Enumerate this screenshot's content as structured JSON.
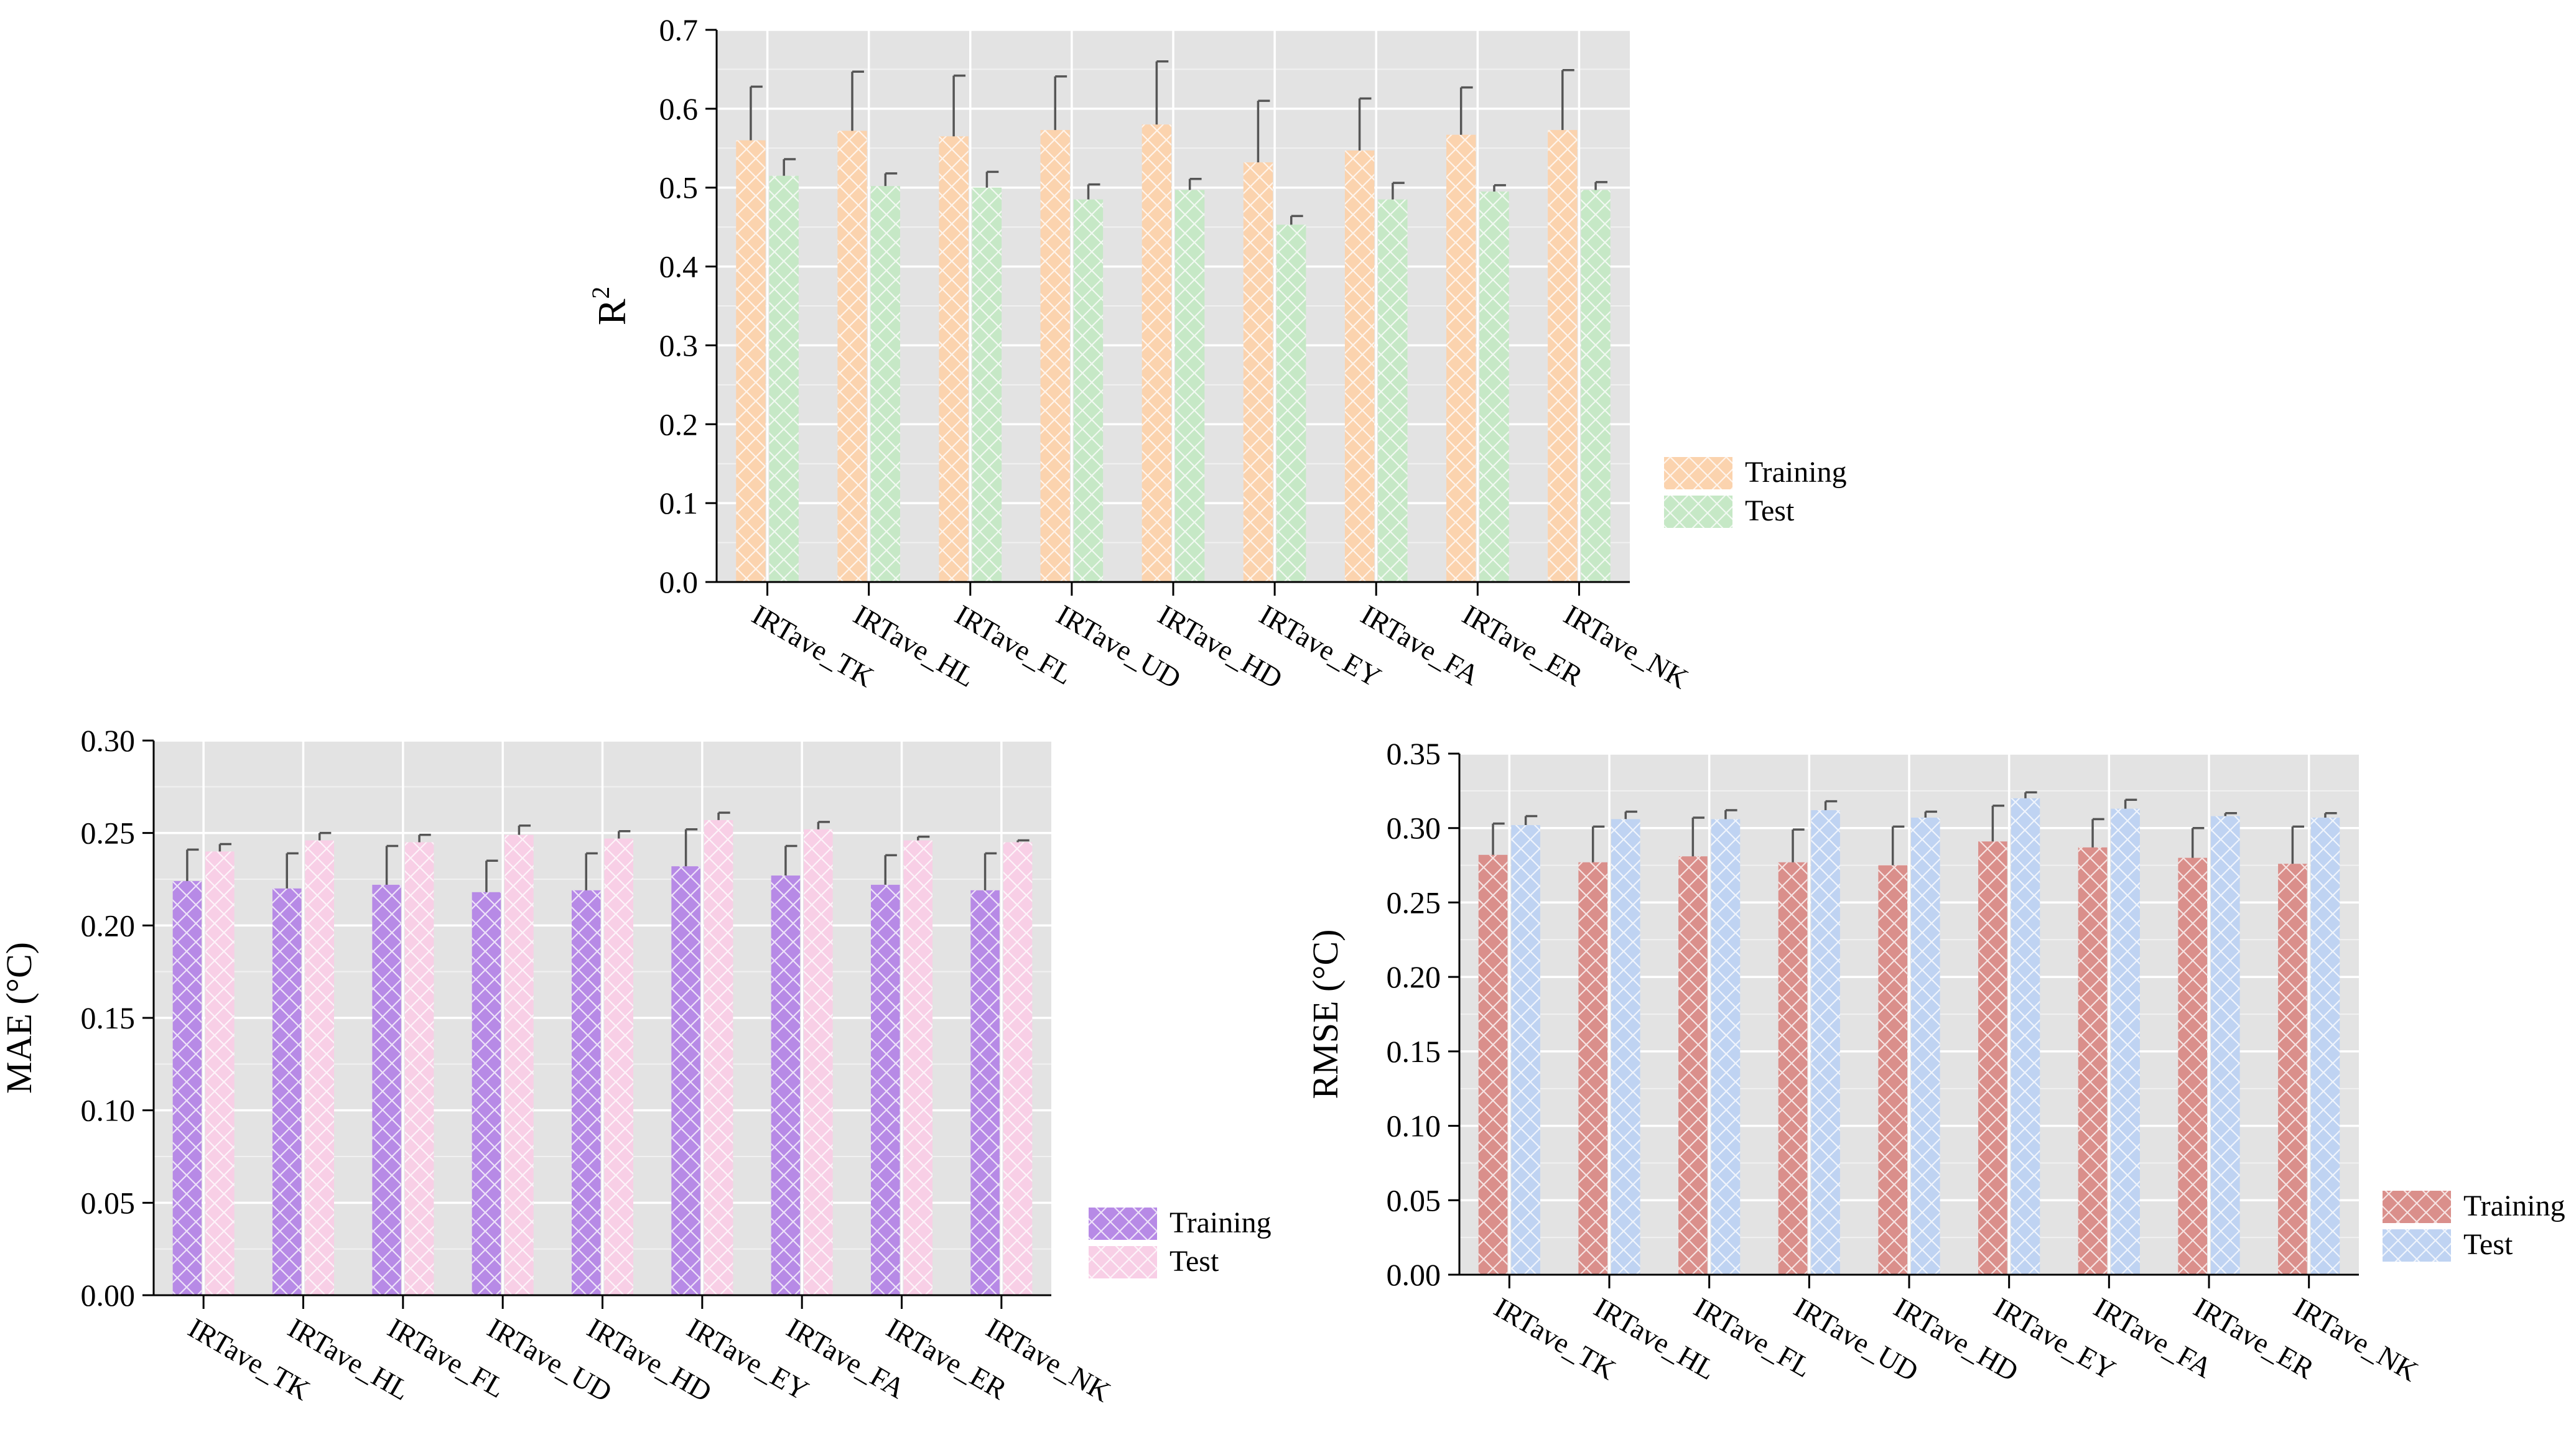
{
  "categories": [
    "IRTave_TK",
    "IRTave_HL",
    "IRTave_FL",
    "IRTave_UD",
    "IRTave_HD",
    "IRTave_EY",
    "IRTave_FA",
    "IRTave_ER",
    "IRTave_NK"
  ],
  "chart_data": [
    {
      "id": "r2",
      "type": "bar",
      "title": "",
      "xlabel": "",
      "ylabel": "R",
      "ylabel_superscript": "2",
      "ylim": [
        0,
        0.7
      ],
      "yticks": [
        "0.0",
        "0.1",
        "0.2",
        "0.3",
        "0.4",
        "0.5",
        "0.6",
        "0.7"
      ],
      "grid": true,
      "legend_position": "right",
      "categories": [
        "IRTave_TK",
        "IRTave_HL",
        "IRTave_FL",
        "IRTave_UD",
        "IRTave_HD",
        "IRTave_EY",
        "IRTave_FA",
        "IRTave_ER",
        "IRTave_NK"
      ],
      "series": [
        {
          "name": "Training",
          "color": "#fbd3ae",
          "values": [
            0.56,
            0.572,
            0.565,
            0.573,
            0.58,
            0.532,
            0.547,
            0.567,
            0.573
          ],
          "errors": [
            0.068,
            0.075,
            0.077,
            0.068,
            0.08,
            0.078,
            0.066,
            0.06,
            0.076
          ]
        },
        {
          "name": "Test",
          "color": "#c6e8c6",
          "values": [
            0.515,
            0.502,
            0.5,
            0.485,
            0.497,
            0.453,
            0.485,
            0.495,
            0.497
          ],
          "errors": [
            0.021,
            0.016,
            0.02,
            0.019,
            0.014,
            0.011,
            0.021,
            0.008,
            0.01
          ]
        }
      ]
    },
    {
      "id": "mae",
      "type": "bar",
      "title": "",
      "xlabel": "",
      "ylabel": "MAE (°C)",
      "ylim": [
        0,
        0.3
      ],
      "yticks": [
        "0.00",
        "0.05",
        "0.10",
        "0.15",
        "0.20",
        "0.25",
        "0.30"
      ],
      "grid": true,
      "legend_position": "right",
      "categories": [
        "IRTave_TK",
        "IRTave_HL",
        "IRTave_FL",
        "IRTave_UD",
        "IRTave_HD",
        "IRTave_EY",
        "IRTave_FA",
        "IRTave_ER",
        "IRTave_NK"
      ],
      "series": [
        {
          "name": "Training",
          "color": "#b78ae6",
          "values": [
            0.224,
            0.22,
            0.222,
            0.218,
            0.219,
            0.232,
            0.227,
            0.222,
            0.219
          ],
          "errors": [
            0.017,
            0.019,
            0.021,
            0.017,
            0.02,
            0.02,
            0.016,
            0.016,
            0.02
          ]
        },
        {
          "name": "Test",
          "color": "#f8cfe6",
          "values": [
            0.24,
            0.246,
            0.245,
            0.249,
            0.247,
            0.257,
            0.252,
            0.246,
            0.245
          ],
          "errors": [
            0.004,
            0.004,
            0.004,
            0.005,
            0.004,
            0.004,
            0.004,
            0.002,
            0.001
          ]
        }
      ]
    },
    {
      "id": "rmse",
      "type": "bar",
      "title": "",
      "xlabel": "",
      "ylabel": "RMSE (°C)",
      "ylim": [
        0,
        0.35
      ],
      "yticks": [
        "0.00",
        "0.05",
        "0.10",
        "0.15",
        "0.20",
        "0.25",
        "0.30",
        "0.35"
      ],
      "grid": true,
      "legend_position": "right",
      "categories": [
        "IRTave_TK",
        "IRTave_HL",
        "IRTave_FL",
        "IRTave_UD",
        "IRTave_HD",
        "IRTave_EY",
        "IRTave_FA",
        "IRTave_ER",
        "IRTave_NK"
      ],
      "series": [
        {
          "name": "Training",
          "color": "#da8f8b",
          "values": [
            0.282,
            0.277,
            0.281,
            0.277,
            0.275,
            0.291,
            0.287,
            0.28,
            0.276
          ],
          "errors": [
            0.021,
            0.024,
            0.026,
            0.022,
            0.026,
            0.024,
            0.019,
            0.02,
            0.025
          ]
        },
        {
          "name": "Test",
          "color": "#bfd3f2",
          "values": [
            0.302,
            0.306,
            0.306,
            0.312,
            0.307,
            0.32,
            0.313,
            0.308,
            0.307
          ],
          "errors": [
            0.006,
            0.005,
            0.006,
            0.006,
            0.004,
            0.004,
            0.006,
            0.002,
            0.003
          ]
        }
      ]
    }
  ]
}
